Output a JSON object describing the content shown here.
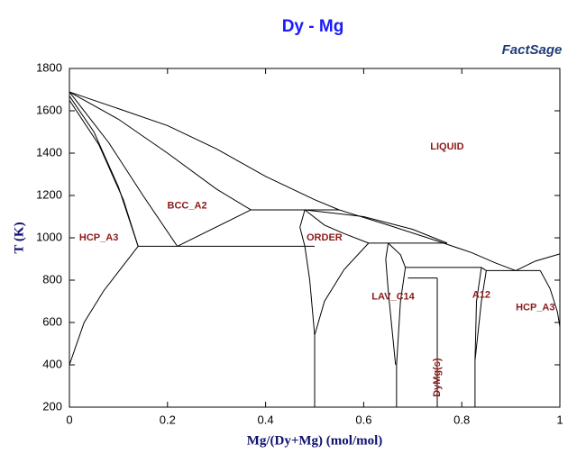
{
  "chart_data": {
    "type": "phase-diagram",
    "title": "Dy - Mg",
    "logo": "FactSage",
    "x_label": "Mg/(Dy+Mg) (mol/mol)",
    "y_label": "T (K)",
    "xlim": [
      0,
      1
    ],
    "ylim": [
      200,
      1800
    ],
    "xticks": [
      0,
      0.2,
      0.4,
      0.6,
      0.8,
      1
    ],
    "yticks": [
      200,
      400,
      600,
      800,
      1000,
      1200,
      1400,
      1600,
      1800
    ],
    "color": "#000000",
    "lines": [
      {
        "x": [
          0,
          0.1,
          0.2,
          0.3,
          0.4,
          0.5,
          0.55,
          0.65,
          0.75,
          0.82,
          0.87,
          0.91
        ],
        "y": [
          1689,
          1610,
          1530,
          1420,
          1290,
          1180,
          1132,
          1060,
          985,
          930,
          880,
          845
        ]
      },
      {
        "x": [
          0.91,
          0.95,
          1
        ],
        "y": [
          845,
          890,
          924
        ]
      },
      {
        "x": [
          0,
          0.1,
          0.2,
          0.3,
          0.37
        ],
        "y": [
          1689,
          1560,
          1400,
          1230,
          1132
        ]
      },
      {
        "x": [
          0.37,
          0.55
        ],
        "y": [
          1132,
          1132
        ]
      },
      {
        "x": [
          0,
          0.05,
          0.1,
          0.14
        ],
        "y": [
          1670,
          1500,
          1240,
          960
        ]
      },
      {
        "x": [
          0,
          0.06,
          0.11,
          0.14
        ],
        "y": [
          1650,
          1440,
          1180,
          960
        ]
      },
      {
        "x": [
          0,
          0.08,
          0.15,
          0.22
        ],
        "y": [
          1689,
          1450,
          1200,
          960
        ]
      },
      {
        "x": [
          0.22,
          0.37
        ],
        "y": [
          960,
          1132
        ]
      },
      {
        "x": [
          0.14,
          0.5
        ],
        "y": [
          960,
          960
        ]
      },
      {
        "x": [
          0,
          0.03,
          0.07,
          0.14
        ],
        "y": [
          400,
          600,
          750,
          960
        ]
      },
      {
        "x": [
          0.48,
          0.47,
          0.48,
          0.49,
          0.5
        ],
        "y": [
          1132,
          1050,
          960,
          800,
          540
        ]
      },
      {
        "x": [
          0.48,
          0.52,
          0.56,
          0.61
        ],
        "y": [
          1132,
          1060,
          1020,
          975
        ]
      },
      {
        "x": [
          0.61,
          0.56,
          0.52,
          0.5
        ],
        "y": [
          975,
          850,
          700,
          540
        ]
      },
      {
        "x": [
          0.5,
          0.5
        ],
        "y": [
          200,
          540
        ]
      },
      {
        "x": [
          0.48,
          0.6,
          0.7,
          0.77
        ],
        "y": [
          1132,
          1100,
          1040,
          975
        ]
      },
      {
        "x": [
          0.61,
          0.77
        ],
        "y": [
          975,
          975
        ]
      },
      {
        "x": [
          0.65,
          0.645,
          0.65,
          0.665
        ],
        "y": [
          975,
          900,
          750,
          400
        ]
      },
      {
        "x": [
          0.65,
          0.675,
          0.685,
          0.675,
          0.667
        ],
        "y": [
          975,
          920,
          860,
          700,
          400
        ]
      },
      {
        "x": [
          0.667,
          0.667
        ],
        "y": [
          200,
          400
        ]
      },
      {
        "x": [
          0.685,
          0.84
        ],
        "y": [
          860,
          860
        ]
      },
      {
        "x": [
          0.84,
          0.83,
          0.827
        ],
        "y": [
          860,
          700,
          420
        ]
      },
      {
        "x": [
          0.84,
          0.85,
          0.84,
          0.827
        ],
        "y": [
          860,
          845,
          700,
          420
        ]
      },
      {
        "x": [
          0.827,
          0.827
        ],
        "y": [
          200,
          420
        ]
      },
      {
        "x": [
          0.85,
          0.96
        ],
        "y": [
          845,
          845
        ]
      },
      {
        "x": [
          0.75,
          0.75
        ],
        "y": [
          200,
          810
        ]
      },
      {
        "x": [
          0.69,
          0.75
        ],
        "y": [
          810,
          810
        ]
      },
      {
        "x": [
          0.96,
          0.98,
          0.995,
          1
        ],
        "y": [
          845,
          760,
          650,
          580
        ]
      }
    ],
    "annotations": [
      {
        "text": "LIQUID",
        "x": 0.77,
        "y": 1430
      },
      {
        "text": "BCC_A2",
        "x": 0.24,
        "y": 1150
      },
      {
        "text": "HCP_A3",
        "x": 0.06,
        "y": 1000
      },
      {
        "text": "ORDER",
        "x": 0.52,
        "y": 1000
      },
      {
        "text": "LAV_C14",
        "x": 0.66,
        "y": 720
      },
      {
        "text": "A12",
        "x": 0.84,
        "y": 730
      },
      {
        "text": "HCP_A3",
        "x": 0.95,
        "y": 670
      },
      {
        "text": "DyMg(s)",
        "x": 0.75,
        "y": 340,
        "rotated": true
      }
    ]
  }
}
